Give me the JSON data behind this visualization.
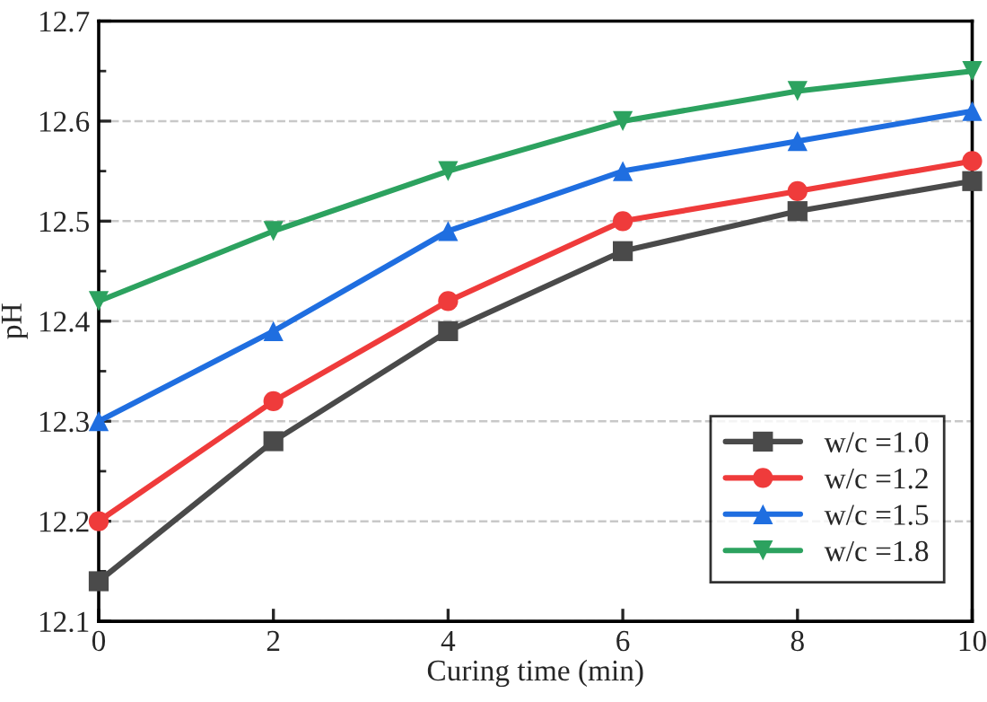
{
  "chart_data": {
    "type": "line",
    "xlabel": "Curing time (min)",
    "ylabel": "pH",
    "x": [
      0,
      2,
      4,
      6,
      8,
      10
    ],
    "series": [
      {
        "name": "w/c =1.0",
        "color": "#4a4a4a",
        "marker": "square",
        "values": [
          12.14,
          12.28,
          12.39,
          12.47,
          12.51,
          12.54
        ]
      },
      {
        "name": "w/c =1.2",
        "color": "#ef3b3b",
        "marker": "circle",
        "values": [
          12.2,
          12.32,
          12.42,
          12.5,
          12.53,
          12.56
        ]
      },
      {
        "name": "w/c =1.5",
        "color": "#1f6ee0",
        "marker": "triangle",
        "values": [
          12.3,
          12.39,
          12.49,
          12.55,
          12.58,
          12.61
        ]
      },
      {
        "name": "w/c =1.8",
        "color": "#2ca25f",
        "marker": "triangle_down",
        "values": [
          12.42,
          12.49,
          12.55,
          12.6,
          12.63,
          12.65
        ]
      }
    ],
    "xlim": [
      0,
      10
    ],
    "xticks": [
      0,
      2,
      4,
      6,
      8,
      10
    ],
    "ylim": [
      12.1,
      12.7
    ],
    "yticks": [
      12.1,
      12.2,
      12.3,
      12.4,
      12.5,
      12.6,
      12.7
    ],
    "grid": "y",
    "legend": "bottom right",
    "line_style": "solid"
  }
}
